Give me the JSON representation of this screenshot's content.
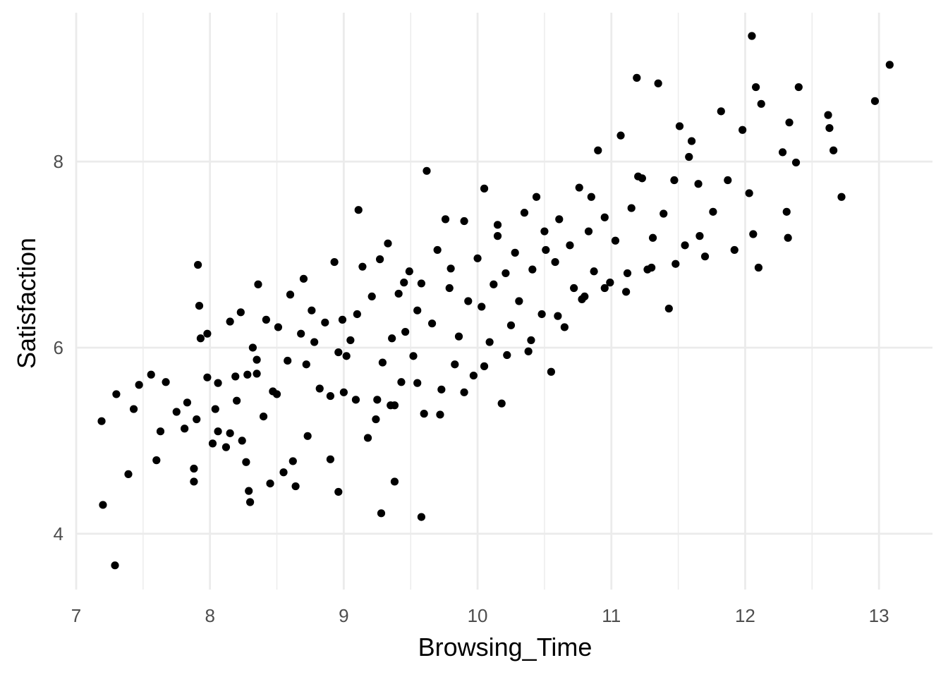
{
  "chart_data": {
    "type": "scatter",
    "title": "",
    "xlabel": "Browsing_Time",
    "ylabel": "Satisfaction",
    "xlim": [
      7.0,
      13.4
    ],
    "ylim": [
      3.4,
      9.6
    ],
    "x_ticks": [
      7,
      8,
      9,
      10,
      11,
      12,
      13
    ],
    "x_tick_labels": [
      "7",
      "8",
      "9",
      "10",
      "11",
      "12",
      "13"
    ],
    "y_ticks": [
      4,
      6,
      8
    ],
    "y_tick_labels": [
      "4",
      "6",
      "8"
    ],
    "grid": true,
    "point_color": "#000000",
    "series": [
      {
        "x": [
          7.19,
          7.2,
          7.29,
          7.3,
          7.39,
          7.43,
          7.47,
          7.56,
          7.6,
          7.63,
          7.67,
          7.75,
          7.81,
          7.83,
          7.88,
          7.88,
          7.9,
          7.91,
          7.92,
          7.93,
          7.98,
          7.98,
          8.02,
          8.04,
          8.06,
          8.06,
          8.12,
          8.15,
          8.15,
          8.19,
          8.2,
          8.23,
          8.24,
          8.27,
          8.28,
          8.29,
          8.3,
          8.32,
          8.35,
          8.36,
          8.4,
          8.42,
          8.45,
          8.47,
          8.51,
          8.55,
          8.58,
          8.6,
          8.64,
          8.68,
          8.7,
          8.73,
          8.76,
          8.78,
          8.82,
          8.86,
          8.9,
          8.93,
          8.96,
          8.99,
          9.02,
          9.05,
          9.09,
          9.11,
          9.14,
          9.18,
          9.21,
          9.24,
          9.27,
          9.29,
          9.33,
          9.36,
          9.38,
          9.41,
          9.43,
          9.46,
          9.49,
          9.52,
          9.55,
          9.58,
          9.6,
          9.62,
          9.66,
          9.7,
          9.73,
          9.76,
          9.79,
          9.83,
          9.86,
          9.9,
          9.93,
          9.97,
          10.0,
          10.03,
          10.05,
          10.09,
          10.12,
          10.15,
          10.18,
          10.21,
          10.25,
          10.28,
          10.31,
          10.35,
          10.38,
          10.41,
          10.44,
          10.48,
          10.51,
          10.55,
          10.58,
          10.61,
          10.65,
          10.69,
          10.72,
          10.76,
          10.8,
          10.83,
          10.87,
          10.9,
          10.95,
          10.99,
          11.03,
          11.07,
          11.11,
          11.15,
          11.19,
          11.23,
          11.27,
          11.31,
          11.35,
          11.39,
          11.43,
          11.47,
          11.51,
          11.55,
          11.6,
          11.65,
          11.7,
          11.76,
          11.82,
          11.87,
          11.92,
          11.98,
          12.03,
          12.05,
          12.06,
          12.08,
          12.1,
          12.12,
          12.28,
          12.31,
          12.32,
          12.33,
          12.38,
          12.4,
          12.62,
          12.63,
          12.66,
          12.72,
          12.97,
          13.08,
          8.9,
          9.0,
          9.25,
          9.35,
          9.55,
          9.72,
          9.9,
          10.05,
          10.22,
          10.4,
          10.6,
          10.78,
          10.95,
          11.12,
          11.3,
          11.48,
          11.66,
          8.5,
          8.72,
          9.1,
          9.45,
          9.8,
          10.15,
          10.5,
          10.85,
          11.2,
          11.58,
          9.58,
          9.28,
          8.62,
          8.35,
          8.96,
          9.38
        ],
        "y": [
          5.21,
          4.31,
          3.66,
          5.5,
          4.64,
          5.34,
          5.6,
          5.71,
          4.79,
          5.1,
          5.63,
          5.31,
          5.13,
          5.41,
          4.56,
          4.7,
          5.23,
          6.89,
          6.45,
          6.1,
          5.68,
          6.15,
          4.97,
          5.34,
          5.1,
          5.62,
          4.93,
          5.08,
          6.28,
          5.69,
          5.43,
          6.38,
          5.0,
          4.77,
          5.71,
          4.46,
          4.34,
          6.0,
          5.87,
          6.68,
          5.26,
          6.3,
          4.54,
          5.53,
          6.22,
          4.66,
          5.86,
          6.57,
          4.51,
          6.15,
          6.74,
          5.05,
          6.4,
          6.06,
          5.56,
          6.27,
          4.8,
          6.92,
          4.45,
          6.3,
          5.91,
          6.08,
          5.44,
          7.48,
          6.87,
          5.03,
          6.55,
          5.23,
          6.95,
          5.84,
          7.12,
          6.1,
          5.38,
          6.58,
          5.63,
          6.17,
          6.82,
          5.91,
          6.4,
          6.69,
          5.29,
          7.9,
          6.26,
          7.05,
          5.55,
          7.38,
          6.64,
          5.82,
          6.12,
          7.36,
          6.5,
          5.7,
          6.96,
          6.44,
          7.71,
          6.06,
          6.68,
          7.32,
          5.4,
          6.8,
          6.24,
          7.02,
          6.5,
          7.45,
          5.96,
          6.84,
          7.62,
          6.36,
          7.05,
          5.74,
          6.92,
          7.38,
          6.22,
          7.1,
          6.64,
          7.72,
          6.55,
          7.25,
          6.82,
          8.12,
          7.4,
          6.7,
          7.15,
          8.28,
          6.6,
          7.5,
          8.9,
          7.82,
          6.84,
          7.18,
          8.84,
          7.44,
          6.42,
          7.8,
          8.38,
          7.1,
          8.22,
          7.76,
          6.98,
          7.46,
          8.54,
          7.8,
          7.05,
          8.34,
          7.66,
          9.35,
          7.22,
          8.8,
          6.86,
          8.62,
          8.1,
          7.46,
          7.18,
          8.42,
          7.99,
          8.8,
          8.5,
          8.36,
          8.12,
          7.62,
          8.65,
          9.04,
          5.48,
          5.52,
          5.44,
          5.38,
          5.62,
          5.28,
          5.52,
          5.8,
          5.92,
          6.08,
          6.34,
          6.52,
          6.64,
          6.8,
          6.86,
          6.9,
          7.2,
          5.5,
          5.82,
          6.36,
          6.7,
          6.85,
          7.2,
          7.25,
          7.62,
          7.84,
          8.05,
          4.18,
          4.22,
          4.78,
          5.72,
          5.95,
          4.56
        ]
      }
    ]
  }
}
